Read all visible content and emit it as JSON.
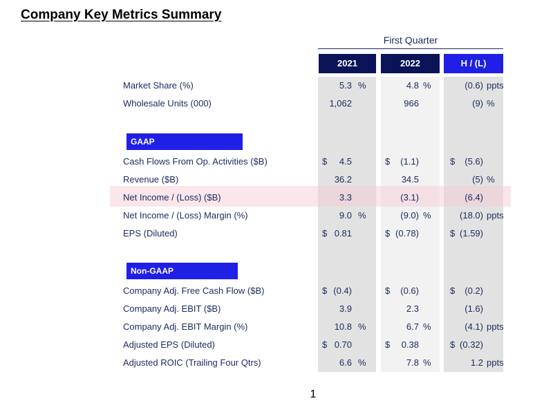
{
  "title": "Company Key Metrics Summary",
  "period": "First Quarter",
  "columns": [
    "2021",
    "2022",
    "H / (L)"
  ],
  "sections": {
    "gaap": "GAAP",
    "nongaap": "Non-GAAP"
  },
  "rows": [
    {
      "label": "Market Share (%)",
      "c2021": {
        "cur": "",
        "val": "5.3",
        "unit": "%"
      },
      "c2022": {
        "cur": "",
        "val": "4.8",
        "unit": "%"
      },
      "chl": {
        "cur": "",
        "val": "(0.6)",
        "unit": "ppts"
      }
    },
    {
      "label": "Wholesale Units (000)",
      "c2021": {
        "cur": "",
        "val": "1,062",
        "unit": ""
      },
      "c2022": {
        "cur": "",
        "val": "966",
        "unit": ""
      },
      "chl": {
        "cur": "",
        "val": "(9)",
        "unit": "%"
      }
    },
    {
      "label": "Cash Flows From Op. Activities ($B)",
      "c2021": {
        "cur": "$",
        "val": "4.5",
        "unit": ""
      },
      "c2022": {
        "cur": "$",
        "val": "(1.1)",
        "unit": ""
      },
      "chl": {
        "cur": "$",
        "val": "(5.6)",
        "unit": ""
      }
    },
    {
      "label": "Revenue ($B)",
      "c2021": {
        "cur": "",
        "val": "36.2",
        "unit": ""
      },
      "c2022": {
        "cur": "",
        "val": "34.5",
        "unit": ""
      },
      "chl": {
        "cur": "",
        "val": "(5)",
        "unit": "%"
      }
    },
    {
      "label": "Net Income / (Loss) ($B)",
      "c2021": {
        "cur": "",
        "val": "3.3",
        "unit": ""
      },
      "c2022": {
        "cur": "",
        "val": "(3.1)",
        "unit": ""
      },
      "chl": {
        "cur": "",
        "val": "(6.4)",
        "unit": ""
      }
    },
    {
      "label": "Net Income / (Loss) Margin (%)",
      "c2021": {
        "cur": "",
        "val": "9.0",
        "unit": "%"
      },
      "c2022": {
        "cur": "",
        "val": "(9.0)",
        "unit": "%"
      },
      "chl": {
        "cur": "",
        "val": "(18.0)",
        "unit": "ppts"
      }
    },
    {
      "label": "EPS (Diluted)",
      "c2021": {
        "cur": "$",
        "val": "0.81",
        "unit": ""
      },
      "c2022": {
        "cur": "$",
        "val": "(0.78)",
        "unit": ""
      },
      "chl": {
        "cur": "$",
        "val": "(1.59)",
        "unit": ""
      }
    },
    {
      "label": "Company Adj. Free Cash Flow ($B)",
      "c2021": {
        "cur": "$",
        "val": "(0.4)",
        "unit": ""
      },
      "c2022": {
        "cur": "$",
        "val": "(0.6)",
        "unit": ""
      },
      "chl": {
        "cur": "$",
        "val": "(0.2)",
        "unit": ""
      }
    },
    {
      "label": "Company Adj. EBIT ($B)",
      "c2021": {
        "cur": "",
        "val": "3.9",
        "unit": ""
      },
      "c2022": {
        "cur": "",
        "val": "2.3",
        "unit": ""
      },
      "chl": {
        "cur": "",
        "val": "(1.6)",
        "unit": ""
      }
    },
    {
      "label": "Company Adj. EBIT Margin (%)",
      "c2021": {
        "cur": "",
        "val": "10.8",
        "unit": "%"
      },
      "c2022": {
        "cur": "",
        "val": "6.7",
        "unit": "%"
      },
      "chl": {
        "cur": "",
        "val": "(4.1)",
        "unit": "ppts"
      }
    },
    {
      "label": "Adjusted EPS (Diluted)",
      "c2021": {
        "cur": "$",
        "val": "0.70",
        "unit": ""
      },
      "c2022": {
        "cur": "$",
        "val": "0.38",
        "unit": ""
      },
      "chl": {
        "cur": "$",
        "val": "(0.32)",
        "unit": ""
      }
    },
    {
      "label": "Adjusted ROIC (Trailing Four Qtrs)",
      "c2021": {
        "cur": "",
        "val": "6.6",
        "unit": "%"
      },
      "c2022": {
        "cur": "",
        "val": "7.8",
        "unit": "%"
      },
      "chl": {
        "cur": "",
        "val": "1.2",
        "unit": "ppts"
      }
    }
  ],
  "highlighted_row": "Net Income / (Loss) ($B)",
  "page_number": "1",
  "colors": {
    "header_dark": "#0a1357",
    "header_accent": "#1f1fe6",
    "text": "#1a2a5c",
    "highlight": "#f4c8d2"
  }
}
